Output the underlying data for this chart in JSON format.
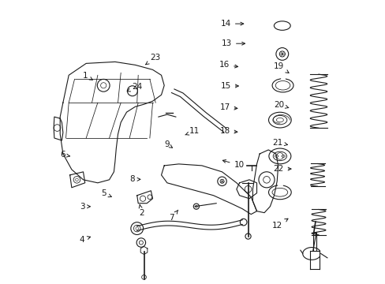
{
  "bg_color": "#ffffff",
  "line_color": "#1a1a1a",
  "fig_width": 4.89,
  "fig_height": 3.6,
  "dpi": 100,
  "label_fontsize": 7.5,
  "labels_arrows": {
    "1": [
      0.128,
      0.735,
      0.148,
      0.718
    ],
    "2": [
      0.31,
      0.248,
      0.31,
      0.288
    ],
    "3": [
      0.118,
      0.272,
      0.148,
      0.272
    ],
    "4": [
      0.118,
      0.155,
      0.148,
      0.168
    ],
    "5": [
      0.195,
      0.318,
      0.215,
      0.305
    ],
    "6": [
      0.048,
      0.455,
      0.075,
      0.448
    ],
    "7": [
      0.435,
      0.232,
      0.448,
      0.26
    ],
    "8": [
      0.295,
      0.368,
      0.325,
      0.368
    ],
    "9": [
      0.418,
      0.492,
      0.43,
      0.478
    ],
    "10": [
      0.645,
      0.418,
      0.595,
      0.438
    ],
    "11": [
      0.488,
      0.538,
      0.472,
      0.525
    ],
    "12": [
      0.818,
      0.205,
      0.845,
      0.235
    ],
    "13": [
      0.638,
      0.848,
      0.695,
      0.848
    ],
    "14": [
      0.635,
      0.918,
      0.69,
      0.918
    ],
    "15": [
      0.635,
      0.698,
      0.672,
      0.698
    ],
    "16": [
      0.63,
      0.772,
      0.67,
      0.765
    ],
    "17": [
      0.632,
      0.622,
      0.668,
      0.618
    ],
    "18": [
      0.632,
      0.538,
      0.668,
      0.535
    ],
    "19": [
      0.822,
      0.768,
      0.848,
      0.738
    ],
    "20": [
      0.822,
      0.632,
      0.848,
      0.618
    ],
    "21": [
      0.818,
      0.498,
      0.845,
      0.488
    ],
    "22": [
      0.822,
      0.405,
      0.858,
      0.405
    ],
    "23": [
      0.348,
      0.798,
      0.325,
      0.768
    ],
    "24": [
      0.285,
      0.695,
      0.265,
      0.678
    ]
  }
}
